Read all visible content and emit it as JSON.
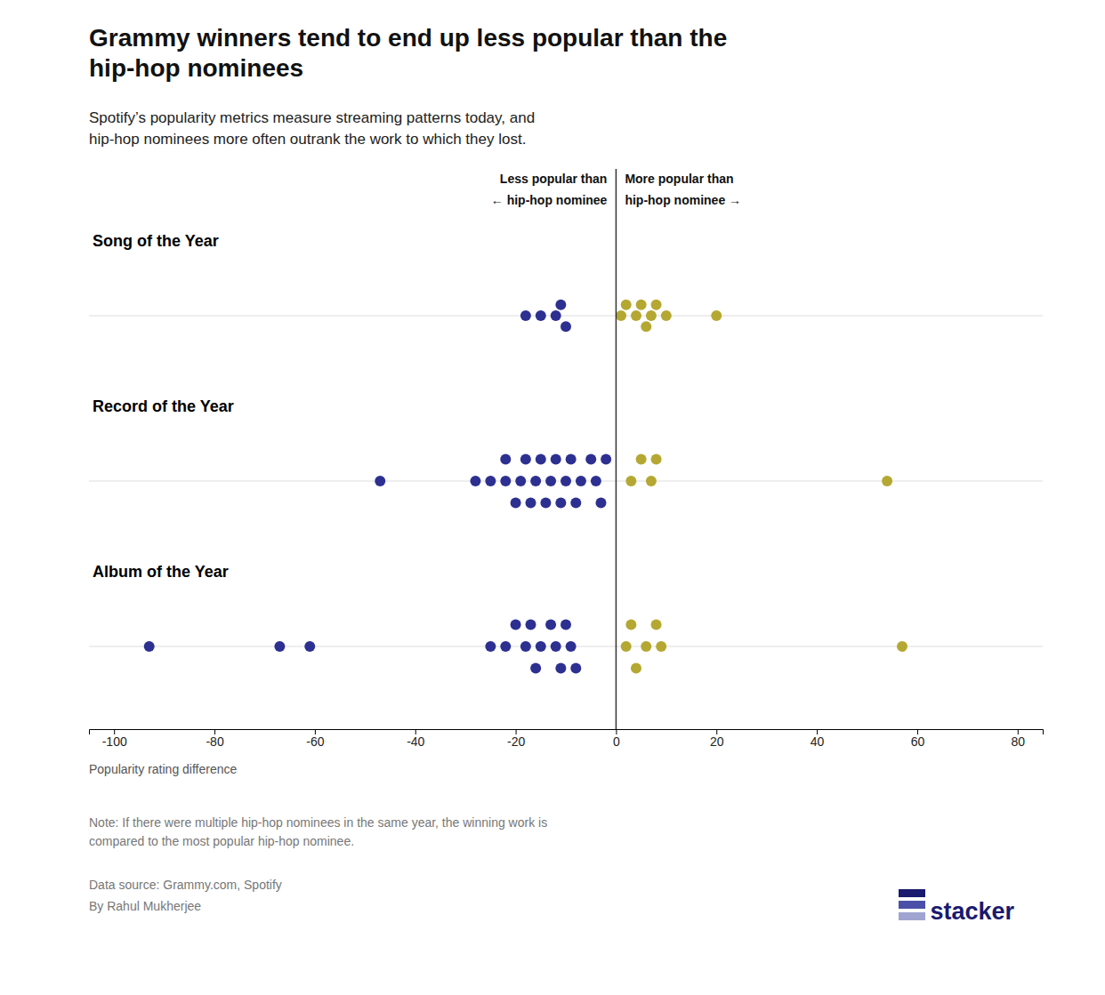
{
  "chart_data": {
    "type": "beeswarm",
    "title": "Grammy winners tend to end up less popular than the\nhip-hop nominees",
    "subtitle": "Spotify’s popularity metrics measure streaming patterns today, and\nhip-hop nominees more often outrank the work to which they lost.",
    "x_label": "Popularity rating difference",
    "annotations": {
      "left": [
        "Less popular than",
        "← hip-hop nominee"
      ],
      "right": [
        "More popular than",
        "hip-hop nominee →"
      ]
    },
    "note": "Note: If there were multiple hip-hop nominees in the same year, the winning work is\ncompared to the most popular hip-hop nominee.",
    "data_source": "Data source: Grammy.com, Spotify",
    "author": "By Rahul Mukherjee",
    "logo": "stacker",
    "baseline": 0,
    "xlim": [
      -105,
      85
    ],
    "xticks": [
      -100,
      -80,
      -60,
      -40,
      -20,
      0,
      20,
      40,
      60,
      80
    ],
    "grid": false,
    "tick_labels": "x",
    "series": [
      {
        "name": "Song of the Year",
        "values": [
          -18,
          -15,
          -12,
          -11,
          -10,
          1,
          2,
          4,
          5,
          6,
          7,
          8,
          10,
          20
        ],
        "colors": [
          "#2d3091",
          "#2d3091",
          "#2d3091",
          "#2d3091",
          "#2d3091",
          "#b5a832",
          "#b5a832",
          "#b5a832",
          "#b5a832",
          "#b5a832",
          "#b5a832",
          "#b5a832",
          "#b5a832",
          "#b5a832"
        ]
      },
      {
        "name": "Record of the Year",
        "values": [
          -47,
          -28,
          -25,
          -22,
          -22,
          -20,
          -19,
          -18,
          -17,
          -16,
          -15,
          -14,
          -13,
          -12,
          -11,
          -10,
          -9,
          -8,
          -7,
          -5,
          -4,
          -3,
          -2,
          3,
          5,
          7,
          8,
          54
        ],
        "colors": [
          "#2d3091",
          "#2d3091",
          "#2d3091",
          "#2d3091",
          "#2d3091",
          "#2d3091",
          "#2d3091",
          "#2d3091",
          "#2d3091",
          "#2d3091",
          "#2d3091",
          "#2d3091",
          "#2d3091",
          "#2d3091",
          "#2d3091",
          "#2d3091",
          "#2d3091",
          "#2d3091",
          "#2d3091",
          "#2d3091",
          "#2d3091",
          "#2d3091",
          "#2d3091",
          "#b5a832",
          "#b5a832",
          "#b5a832",
          "#b5a832",
          "#b5a832"
        ]
      },
      {
        "name": "Album of the Year",
        "values": [
          -93,
          -67,
          -61,
          -25,
          -22,
          -20,
          -18,
          -17,
          -16,
          -15,
          -13,
          -12,
          -11,
          -10,
          -9,
          -8,
          2,
          3,
          4,
          6,
          8,
          9,
          57
        ],
        "colors": [
          "#2d3091",
          "#2d3091",
          "#2d3091",
          "#2d3091",
          "#2d3091",
          "#2d3091",
          "#2d3091",
          "#2d3091",
          "#2d3091",
          "#2d3091",
          "#2d3091",
          "#2d3091",
          "#2d3091",
          "#2d3091",
          "#2d3091",
          "#2d3091",
          "#b5a832",
          "#b5a832",
          "#b5a832",
          "#b5a832",
          "#b5a832",
          "#b5a832",
          "#b5a832"
        ]
      }
    ]
  }
}
